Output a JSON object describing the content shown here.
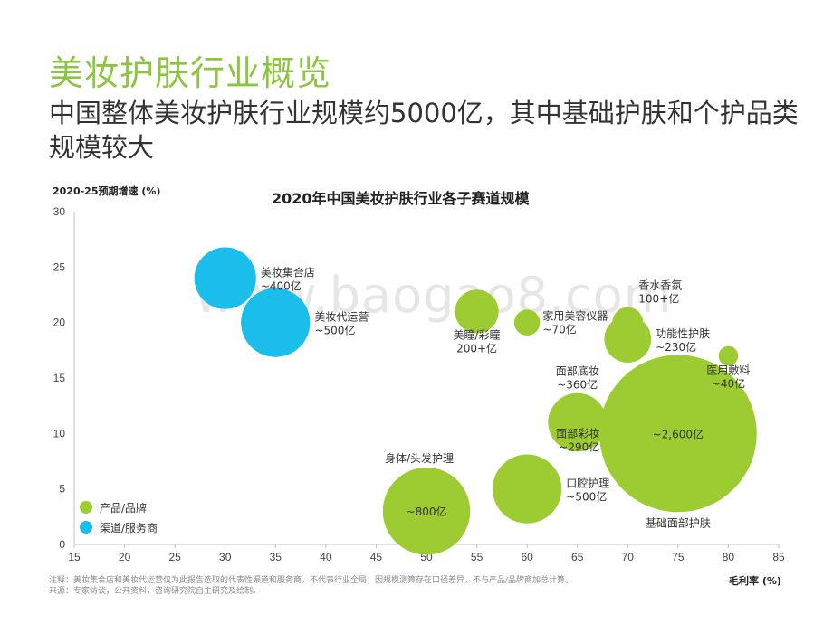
{
  "header": {
    "title": "美妆护肤行业概览",
    "subtitle": "中国整体美妆护肤行业规模约5000亿，其中基础护肤和个护品类规模较大"
  },
  "watermark": "www.baogao8.com",
  "notes": {
    "line1": "注释：美妆集合店和美妆代运营仅为此报告选取的代表性渠道和服务商，不代表行业全局；因规模测算存在口径差异，不与产品/品牌商加总计算。",
    "line2": "来源：专家访谈，公开资料，咨询研究院自主研究及绘制。"
  },
  "colors": {
    "product": "#9ccc32",
    "channel": "#1bbdea",
    "title": "#8cc63f"
  },
  "chart_data": {
    "type": "scatter",
    "title": "2020年中国美妆护肤行业各子赛道规模",
    "xlabel": "毛利率 (%)",
    "ylabel": "2020-25预期增速 (%)",
    "xlim": [
      15,
      85
    ],
    "ylim": [
      0,
      30
    ],
    "xticks": [
      15,
      20,
      25,
      30,
      35,
      40,
      45,
      50,
      55,
      60,
      65,
      70,
      75,
      80,
      85
    ],
    "yticks": [
      0,
      5,
      10,
      15,
      20,
      25,
      30
    ],
    "grid": false,
    "legend_position": "bottom-left",
    "series": [
      {
        "name": "产品/品牌",
        "color": "#9ccc32",
        "points": [
          {
            "label": "身体/头发护理",
            "size_label": "~800亿",
            "x": 50,
            "y": 3,
            "size": 800
          },
          {
            "label": "口腔护理",
            "size_label": "~500亿",
            "x": 60,
            "y": 5,
            "size": 500
          },
          {
            "label": "美瞳/彩瞳",
            "size_label": "200+亿",
            "x": 55,
            "y": 21,
            "size": 200
          },
          {
            "label": "家用美容仪器",
            "size_label": "~70亿",
            "x": 60,
            "y": 20,
            "size": 70
          },
          {
            "label": "面部底妆",
            "size_label": "~360亿",
            "x": 65,
            "y": 11,
            "size": 360
          },
          {
            "label": "面部彩妆",
            "size_label": "~290亿",
            "x": 70,
            "y": 9.5,
            "size": 290
          },
          {
            "label": "香水香氛",
            "size_label": "100+亿",
            "x": 70,
            "y": 20,
            "size": 100
          },
          {
            "label": "功能性护肤",
            "size_label": "~230亿",
            "x": 70,
            "y": 18.5,
            "size": 230
          },
          {
            "label": "基础面部护肤",
            "size_label": "~2,600亿",
            "x": 75,
            "y": 10,
            "size": 2600
          },
          {
            "label": "医用敷料",
            "size_label": "~40亿",
            "x": 80,
            "y": 17,
            "size": 40
          }
        ]
      },
      {
        "name": "渠道/服务商",
        "color": "#1bbdea",
        "points": [
          {
            "label": "美妆集合店",
            "size_label": "~400亿",
            "x": 30,
            "y": 24,
            "size": 400
          },
          {
            "label": "美妆代运营",
            "size_label": "~500亿",
            "x": 35,
            "y": 20,
            "size": 500
          }
        ]
      }
    ]
  }
}
